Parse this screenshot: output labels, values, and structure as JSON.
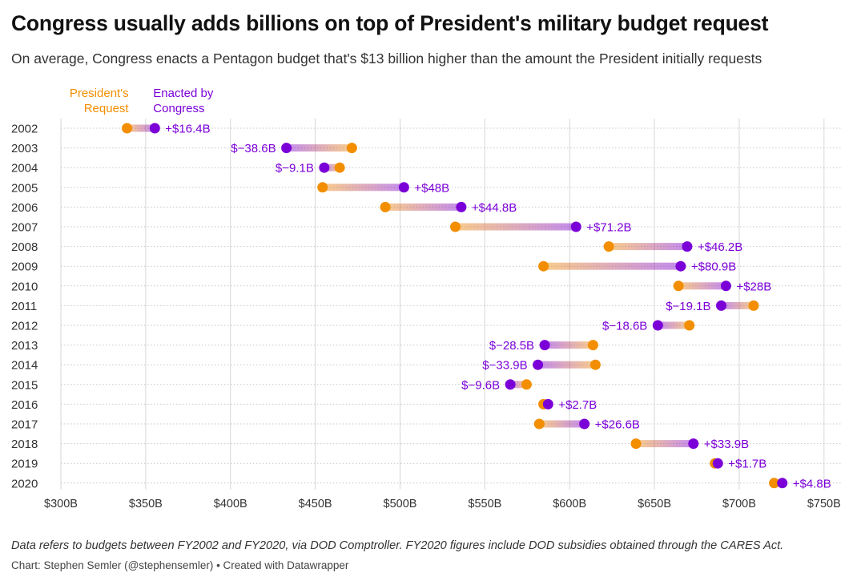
{
  "header": {
    "title": "Congress usually adds billions on top of President's military budget request",
    "subtitle": "On average, Congress enacts a Pentagon budget that's $13 billion higher than the amount the President initially requests"
  },
  "footer": {
    "note": "Data refers to budgets between FY2002 and FY2020, via DOD Comptroller. FY2020 figures include DOD subsidies obtained through the CARES Act.",
    "credit": "Chart: Stephen Semler (@stephensemler) • Created with Datawrapper"
  },
  "chart_data": {
    "type": "dot-range",
    "x_domain": [
      300,
      760
    ],
    "x_ticks": [
      300,
      350,
      400,
      450,
      500,
      550,
      600,
      650,
      700,
      750
    ],
    "x_tick_labels": [
      "$300B",
      "$350B",
      "$400B",
      "$450B",
      "$500B",
      "$550B",
      "$600B",
      "$650B",
      "$700B",
      "$750B"
    ],
    "grid": true,
    "legend": [
      {
        "label_lines": [
          "President's",
          "Request"
        ],
        "color": "#f28e00"
      },
      {
        "label_lines": [
          "Enacted by",
          "Congress"
        ],
        "color": "#7b00d8"
      }
    ],
    "colors": {
      "request": "#f28e00",
      "enacted": "#7b00d8",
      "label": "#7b00d8"
    },
    "categories": [
      "2002",
      "2003",
      "2004",
      "2005",
      "2006",
      "2007",
      "2008",
      "2009",
      "2010",
      "2011",
      "2012",
      "2013",
      "2014",
      "2015",
      "2016",
      "2017",
      "2018",
      "2019",
      "2020"
    ],
    "series": [
      {
        "name": "President's Request",
        "values": [
          339,
          471.6,
          464.4,
          454.3,
          491.3,
          532.6,
          623.1,
          584.6,
          664.2,
          708.5,
          670.6,
          613.8,
          615.2,
          574.6,
          584.6,
          582.1,
          639.1,
          685.7,
          720.6
        ]
      },
      {
        "name": "Enacted by Congress",
        "values": [
          355.4,
          433,
          455.3,
          502.3,
          536.1,
          603.8,
          669.3,
          665.5,
          692.2,
          689.4,
          652,
          585.3,
          581.3,
          565,
          587.3,
          608.7,
          673,
          687.4,
          725.4
        ]
      }
    ],
    "diff_labels": [
      "+$16.4B",
      "$−38.6B",
      "$−9.1B",
      "+$48B",
      "+$44.8B",
      "+$71.2B",
      "+$46.2B",
      "+$80.9B",
      "+$28B",
      "$−19.1B",
      "$−18.6B",
      "$−28.5B",
      "$−33.9B",
      "$−9.6B",
      "+$2.7B",
      "+$26.6B",
      "+$33.9B",
      "+$1.7B",
      "+$4.8B"
    ]
  }
}
